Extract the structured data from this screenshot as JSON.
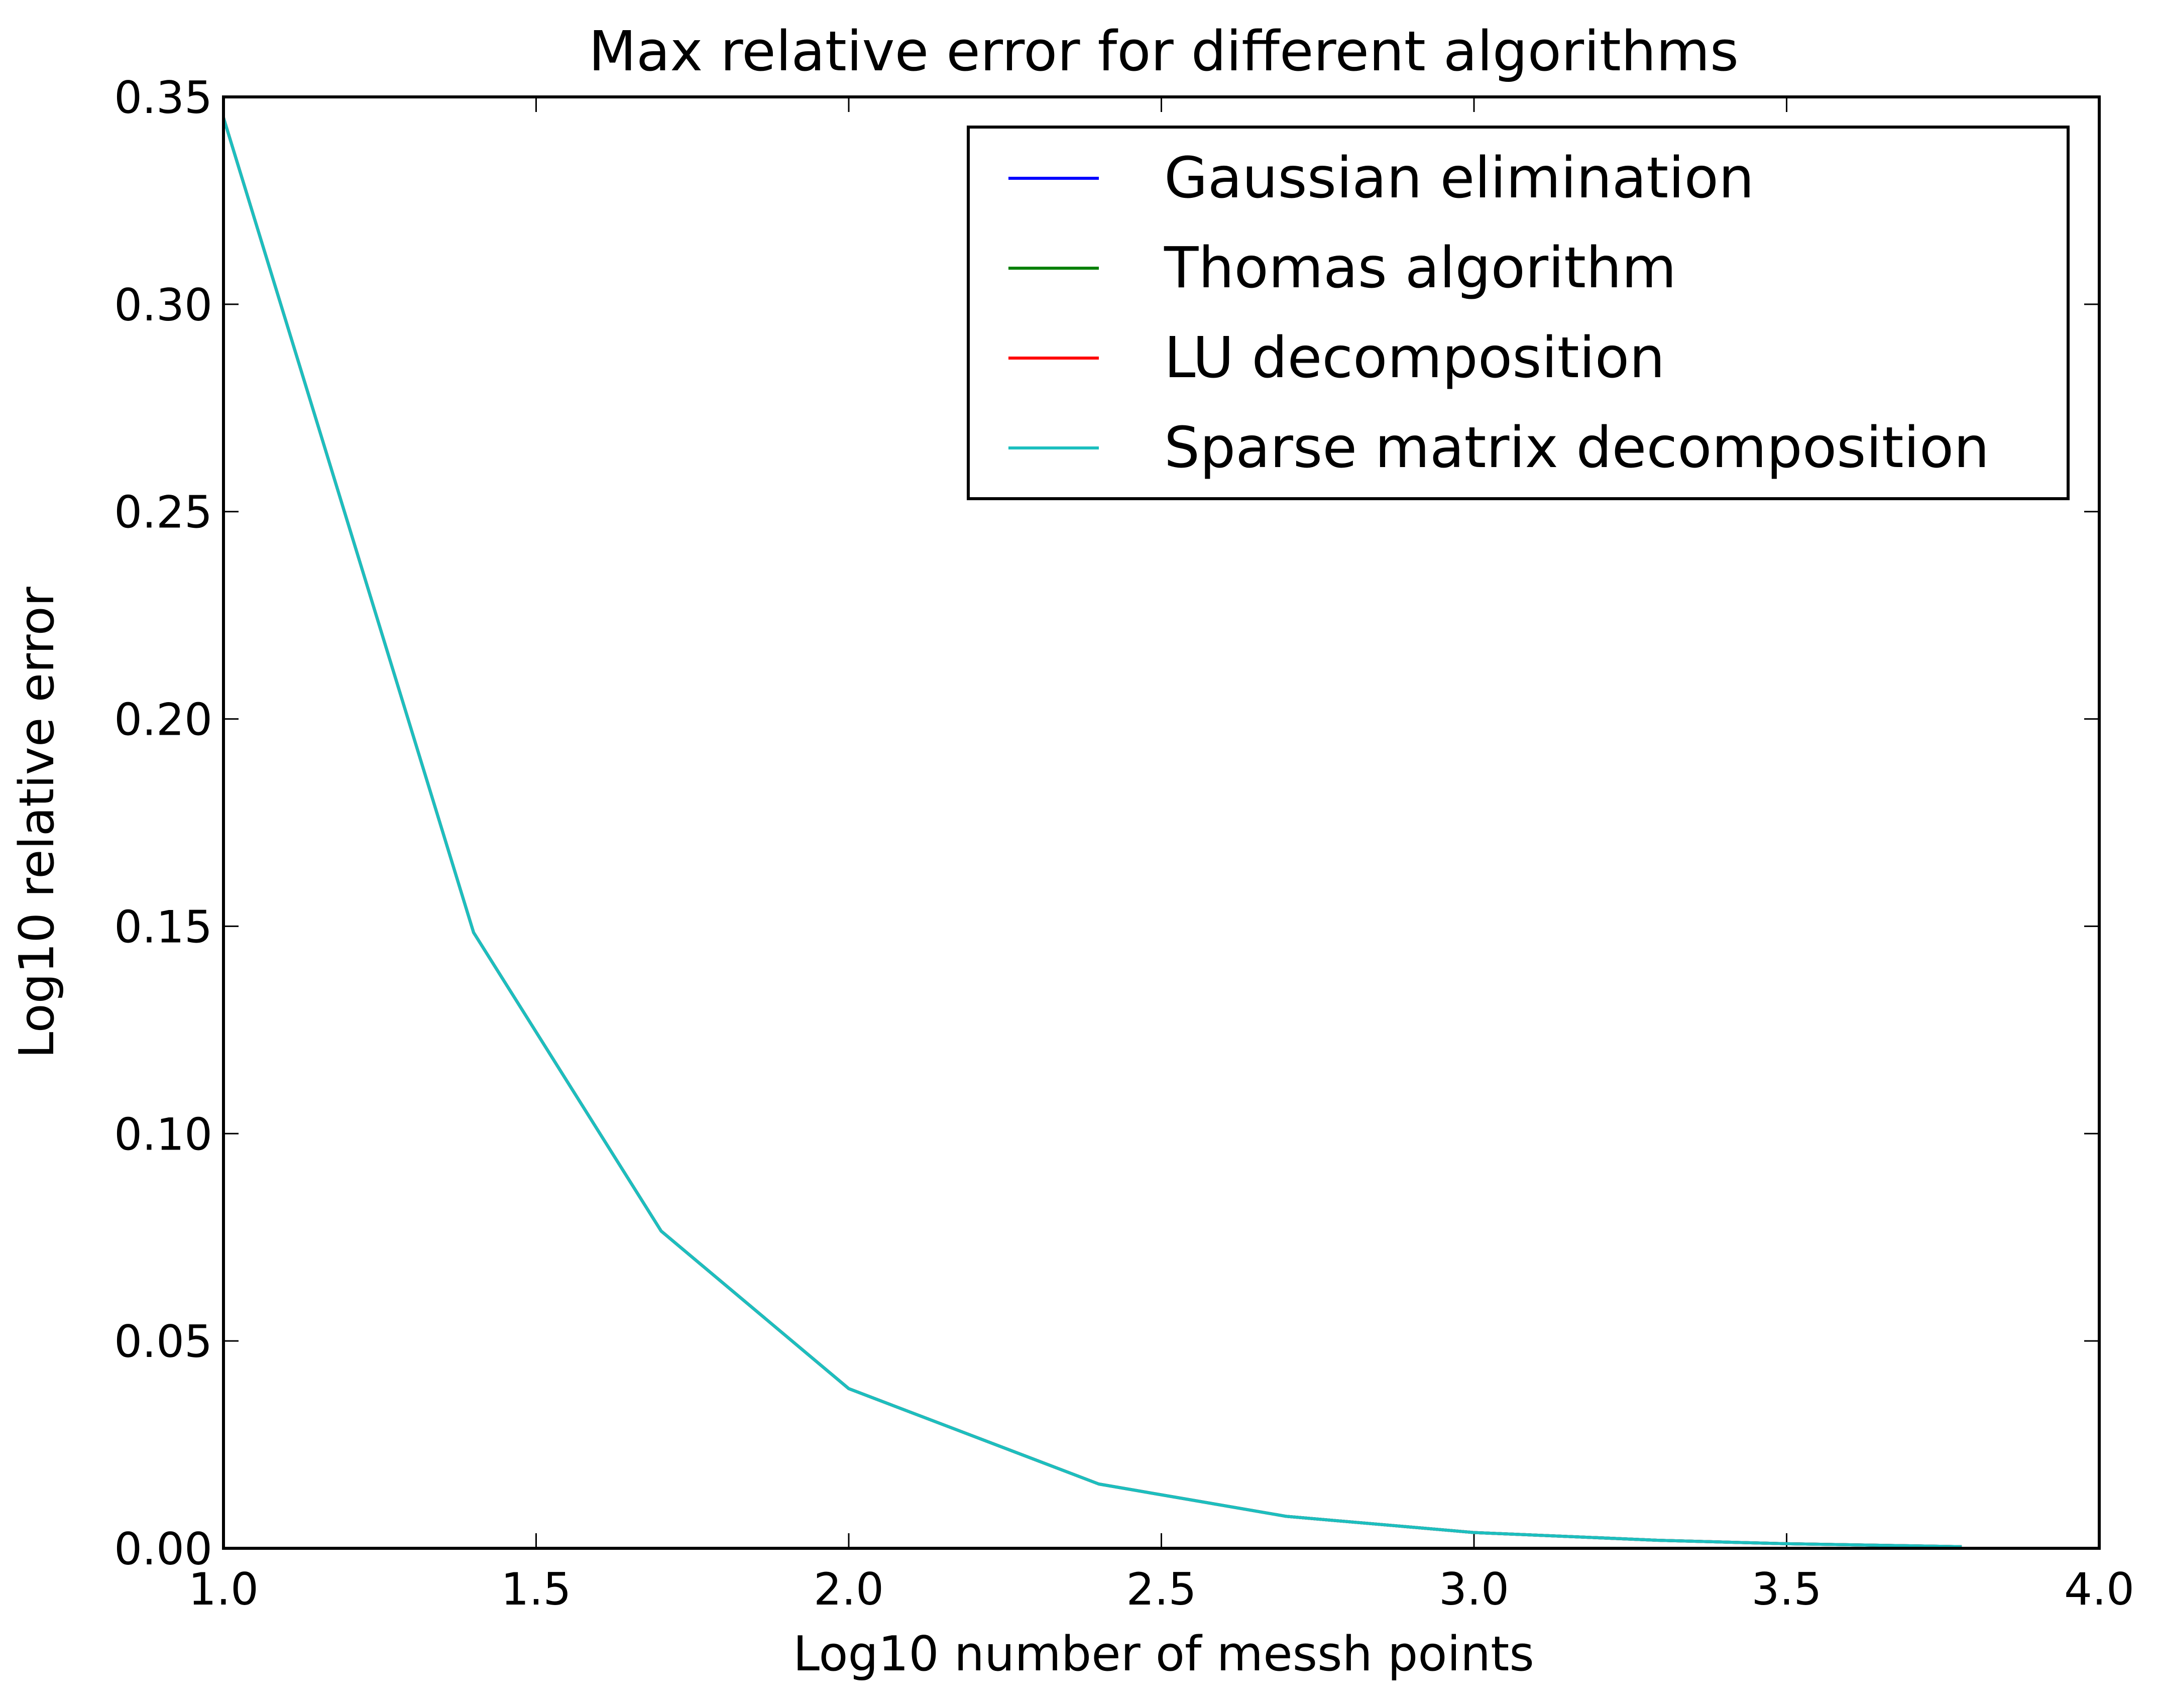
{
  "chart_data": {
    "type": "line",
    "title": "Max relative error for different algorithms",
    "xlabel": "Log10 number of messh points",
    "ylabel": "Log10 relative error",
    "xlim": [
      1.0,
      4.0
    ],
    "ylim": [
      0.0,
      0.35
    ],
    "xticks": [
      "1.0",
      "1.5",
      "2.0",
      "2.5",
      "3.0",
      "3.5",
      "4.0"
    ],
    "yticks": [
      "0.00",
      "0.05",
      "0.10",
      "0.15",
      "0.20",
      "0.25",
      "0.30",
      "0.35"
    ],
    "grid": false,
    "legend_position": "top-right",
    "x": [
      1.0,
      1.4,
      1.7,
      2.0,
      2.4,
      2.7,
      3.0,
      3.3,
      3.5,
      3.78
    ],
    "series": [
      {
        "name": "Gaussian elimination",
        "color": "#0000ff",
        "values": [
          0.345,
          0.1485,
          0.0765,
          0.0385,
          0.0155,
          0.0077,
          0.0038,
          0.0019,
          0.0011,
          0.0004
        ]
      },
      {
        "name": "Thomas algorithm",
        "color": "#008000",
        "values": [
          0.345,
          0.1485,
          0.0765,
          0.0385,
          0.0155,
          0.0077,
          0.0038,
          0.0019,
          0.0011,
          0.0004
        ]
      },
      {
        "name": "LU decomposition",
        "color": "#ff0000",
        "values": [
          0.345,
          0.1485,
          0.0765,
          0.0385,
          0.0155,
          0.0077,
          0.0038,
          0.0019,
          0.0011,
          0.0004
        ]
      },
      {
        "name": "Sparse matrix decomposition",
        "color": "#1cbfbf",
        "values": [
          0.345,
          0.1485,
          0.0765,
          0.0385,
          0.0155,
          0.0077,
          0.0038,
          0.0019,
          0.0011,
          0.0004
        ]
      }
    ]
  }
}
